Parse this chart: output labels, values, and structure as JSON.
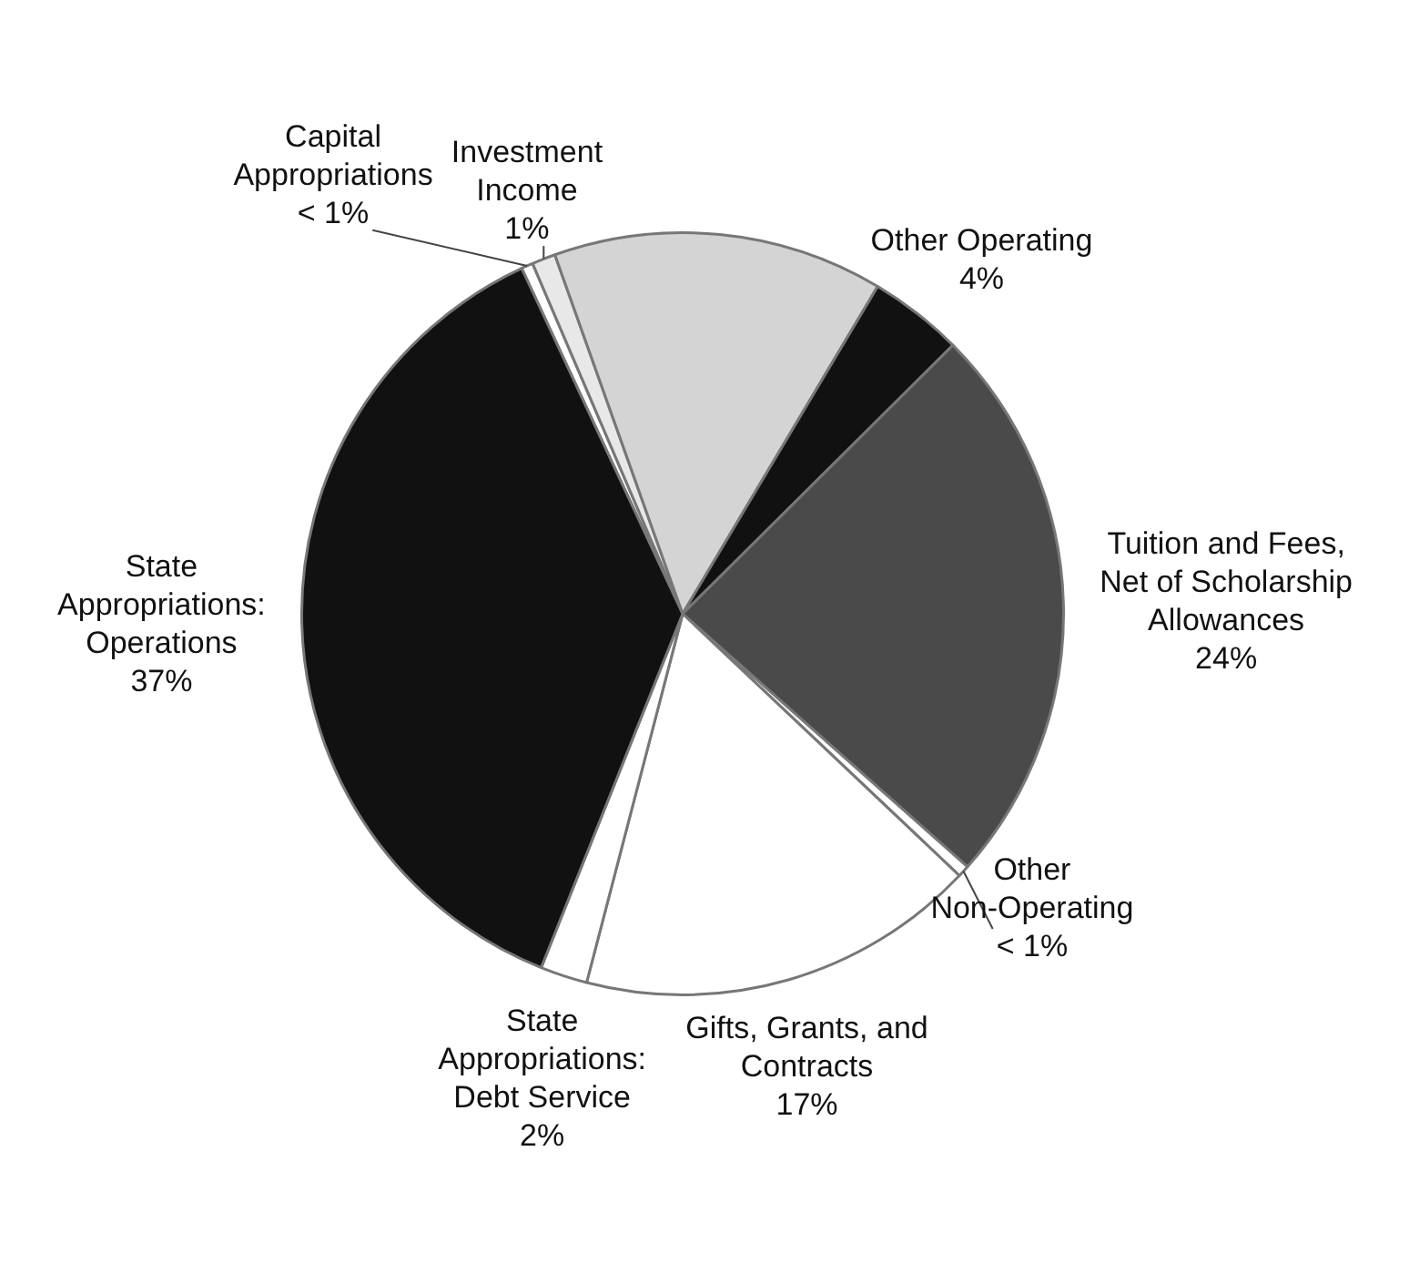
{
  "chart_data": {
    "type": "pie",
    "categories": [
      "Capital Appropriations",
      "Investment Income",
      null,
      "Other Operating",
      "Tuition and Fees, Net of Scholarship Allowances",
      "Other Non-Operating",
      "Gifts, Grants, and Contracts",
      "State Appropriations: Debt Service",
      "State Appropriations: Operations"
    ],
    "values": [
      0.5,
      1,
      14,
      4,
      24,
      0.5,
      17,
      2,
      37
    ],
    "value_labels": [
      "< 1%",
      "1%",
      null,
      "4%",
      "24%",
      "< 1%",
      "17%",
      "2%",
      "37%"
    ],
    "colors": [
      "#ffffff",
      "#e8e8e8",
      "#d4d4d4",
      "#111111",
      "#4a4a4a",
      "#ffffff",
      "#ffffff",
      "#ffffff",
      "#111111"
    ],
    "legend": false
  }
}
